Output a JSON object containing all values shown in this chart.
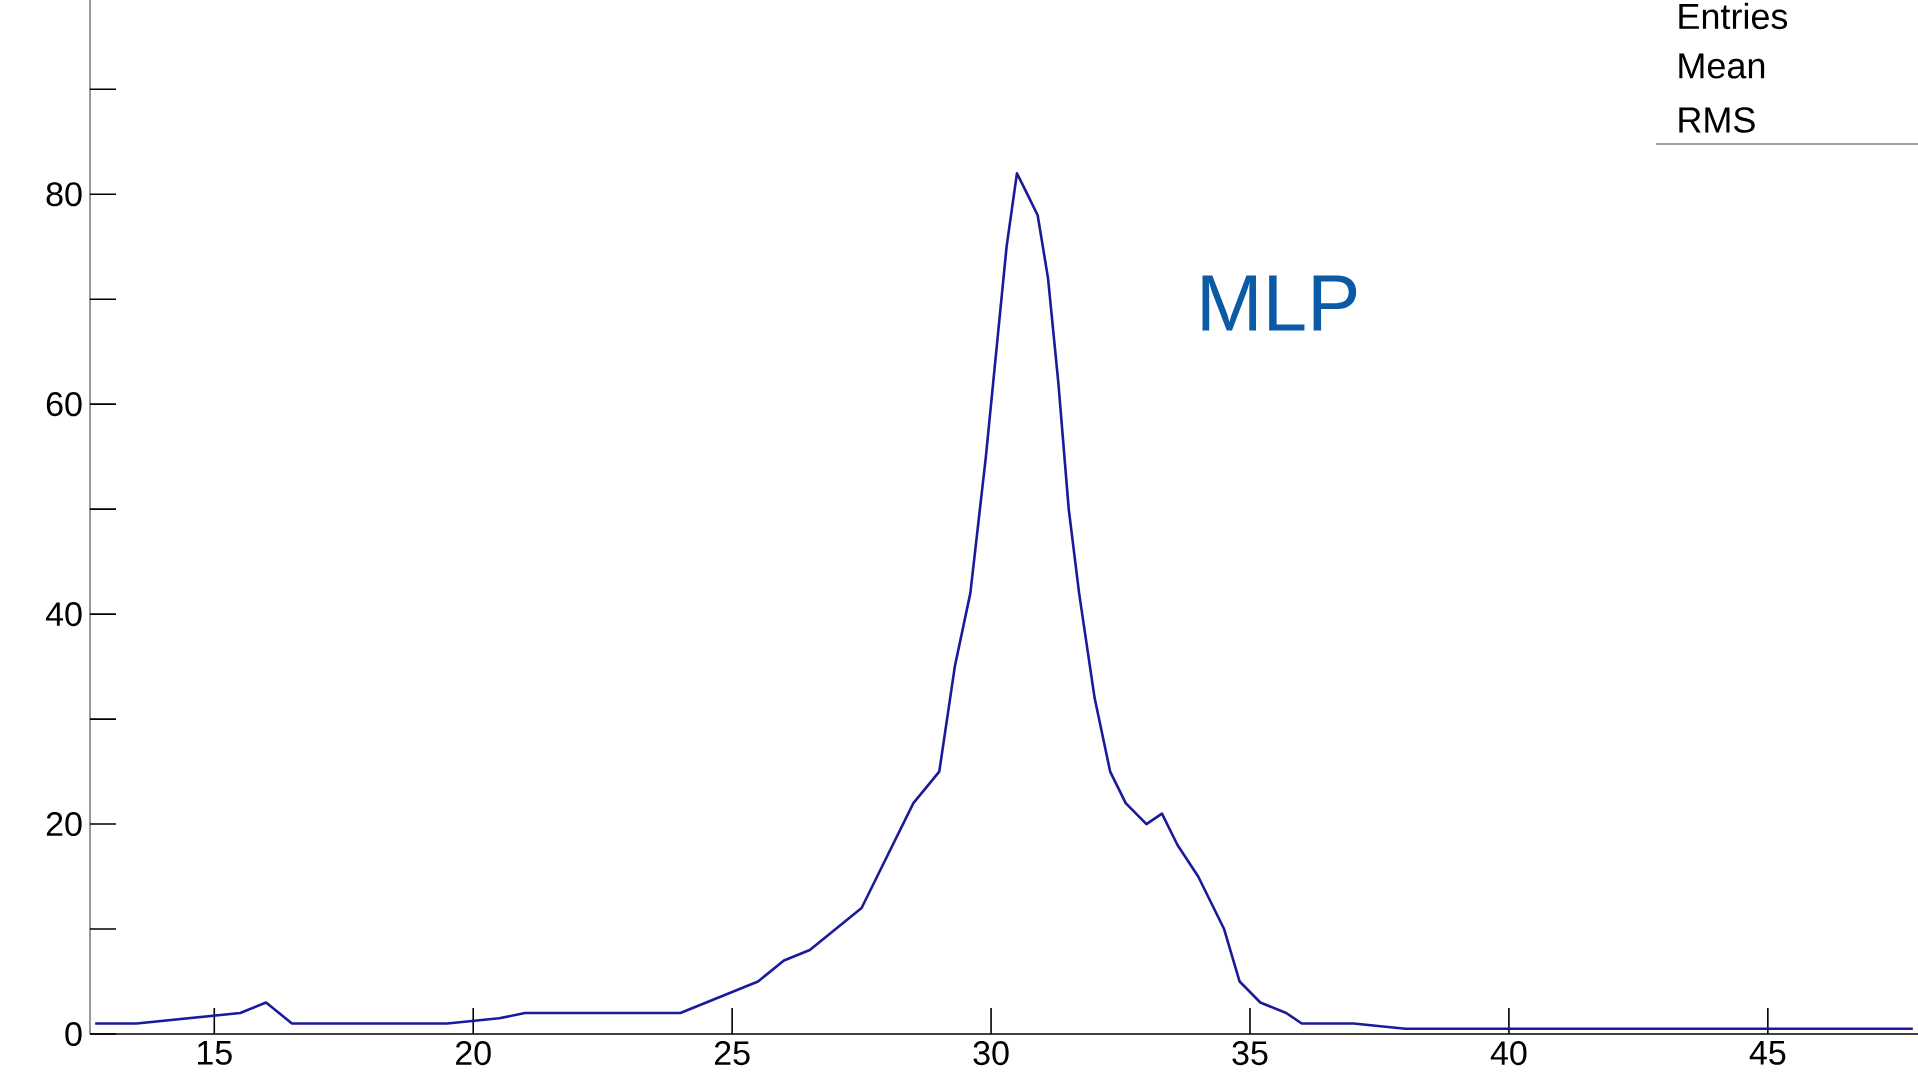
{
  "chart_data": {
    "type": "line",
    "annotations": [
      "MLP",
      "Entries",
      "Mean",
      "RMS"
    ],
    "xlim": [
      12.6,
      47.9
    ],
    "ylim": [
      0,
      98.5
    ],
    "xticks": [
      15,
      20,
      25,
      30,
      35,
      40,
      45
    ],
    "yticks": [
      0,
      {
        "value": 10,
        "label": null
      },
      20,
      {
        "value": 30,
        "label": null
      },
      40,
      {
        "value": 50,
        "label": null
      },
      60,
      {
        "value": 70,
        "label": null
      },
      80,
      {
        "value": 90,
        "label": null
      }
    ],
    "grid": false,
    "marker": "none",
    "line_style": "solid",
    "series": [
      {
        "color": "#1a1a9a",
        "x": [
          12.7,
          13.5,
          14.5,
          15.5,
          16.0,
          16.5,
          17.5,
          18.5,
          19.5,
          20.5,
          21,
          22,
          23,
          24,
          24.5,
          25,
          25.5,
          26,
          26.5,
          27,
          27.5,
          28,
          28.5,
          29,
          29.3,
          29.6,
          29.9,
          30.1,
          30.3,
          30.5,
          30.7,
          30.9,
          31.1,
          31.3,
          31.5,
          31.7,
          32,
          32.3,
          32.6,
          33,
          33.3,
          33.6,
          34,
          34.5,
          34.8,
          35.2,
          35.7,
          36,
          37,
          38,
          40,
          42,
          44,
          46,
          47.8
        ],
        "values": [
          1,
          1,
          1.5,
          2,
          3,
          1,
          1,
          1,
          1,
          1.5,
          2,
          2,
          2,
          2,
          3,
          4,
          5,
          7,
          8,
          10,
          12,
          17,
          22,
          25,
          35,
          42,
          55,
          65,
          75,
          82,
          80,
          78,
          72,
          62,
          50,
          42,
          32,
          25,
          22,
          20,
          21,
          18,
          15,
          10,
          5,
          3,
          2,
          1,
          1,
          0.5,
          0.5,
          0.5,
          0.5,
          0.5,
          0.5
        ]
      }
    ]
  }
}
